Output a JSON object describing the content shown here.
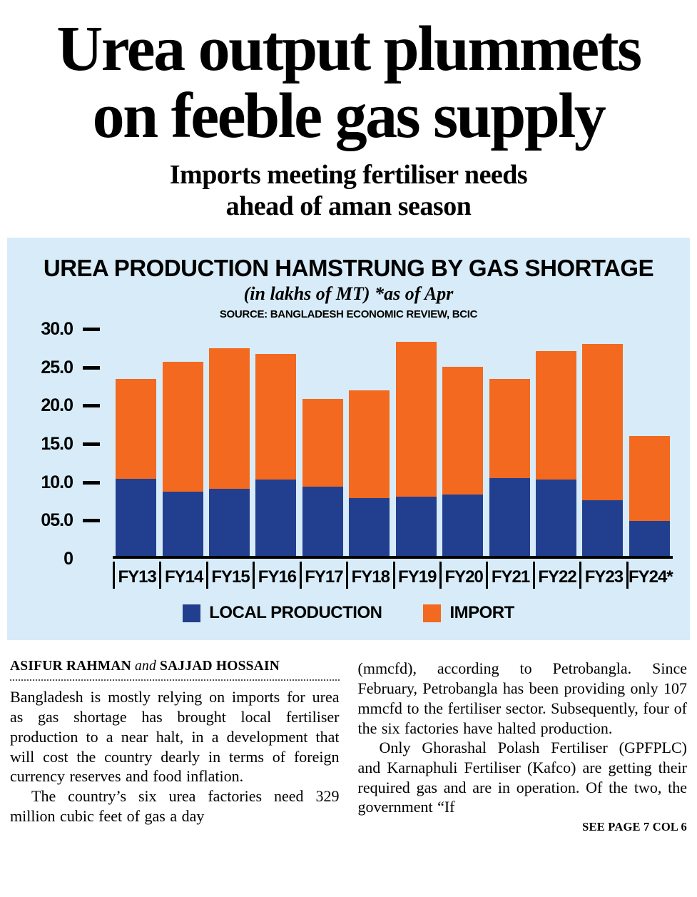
{
  "page": {
    "headline_line1": "Urea output plummets",
    "headline_line2": "on feeble gas supply",
    "subheadline_line1": "Imports meeting fertiliser needs",
    "subheadline_line2": "ahead of aman season"
  },
  "chart": {
    "title": "UREA PRODUCTION HAMSTRUNG BY GAS SHORTAGE",
    "subtitle": "(in lakhs of MT) *as of Apr",
    "source": "SOURCE: BANGLADESH ECONOMIC REVIEW, BCIC",
    "background_color": "#d7ecf8",
    "y_ticks": [
      {
        "label": "30.0",
        "value": 30
      },
      {
        "label": "25.0",
        "value": 25
      },
      {
        "label": "20.0",
        "value": 20
      },
      {
        "label": "15.0",
        "value": 15
      },
      {
        "label": "10.0",
        "value": 10
      },
      {
        "label": "05.0",
        "value": 5
      },
      {
        "label": "0",
        "value": 0
      }
    ],
    "legend": [
      {
        "label": "LOCAL PRODUCTION",
        "color": "#223f8f"
      },
      {
        "label": "IMPORT",
        "color": "#f2691f"
      }
    ]
  },
  "chart_data": {
    "type": "bar",
    "stacked": true,
    "title": "UREA PRODUCTION HAMSTRUNG BY GAS SHORTAGE",
    "unit_note": "(in lakhs of MT) *as of Apr",
    "source": "SOURCE: BANGLADESH ECONOMIC REVIEW, BCIC",
    "categories": [
      "FY13",
      "FY14",
      "FY15",
      "FY16",
      "FY17",
      "FY18",
      "FY19",
      "FY20",
      "FY21",
      "FY22",
      "FY23",
      "FY24*"
    ],
    "series": [
      {
        "name": "LOCAL PRODUCTION",
        "color": "#223f8f",
        "values": [
          10.2,
          8.5,
          8.9,
          10.1,
          9.2,
          7.7,
          7.9,
          8.1,
          10.3,
          10.1,
          7.4,
          4.7
        ]
      },
      {
        "name": "IMPORT",
        "color": "#f2691f",
        "values": [
          13.2,
          17.2,
          18.6,
          16.6,
          11.6,
          14.2,
          20.4,
          16.9,
          13.1,
          17.0,
          20.7,
          11.2
        ]
      }
    ],
    "ylim": [
      0,
      30
    ],
    "grid": false,
    "legend_position": "bottom"
  },
  "article": {
    "byline_author1": "ASIFUR RAHMAN",
    "byline_connector": "and",
    "byline_author2": "SAJJAD HOSSAIN",
    "col1_paragraphs": [
      "Bangladesh is mostly relying on imports for urea as gas shortage has brought local fertiliser production to a near halt, in a development that will cost the country dearly in terms of foreign currency reserves and food inflation.",
      "The country’s six urea factories need 329 million cubic feet of gas a day"
    ],
    "col2_paragraphs": [
      "(mmcfd), according to Petrobangla. Since February, Petrobangla has been providing only 107 mmcfd to the fertiliser sector. Subsequently, four of the six factories have halted production.",
      "Only Ghorashal Polash Fertiliser (GPFPLC) and Karnaphuli Fertiliser (Kafco) are getting their required gas and are in operation. Of the two, the government “If"
    ],
    "continuation": "SEE PAGE 7 COL 6"
  }
}
